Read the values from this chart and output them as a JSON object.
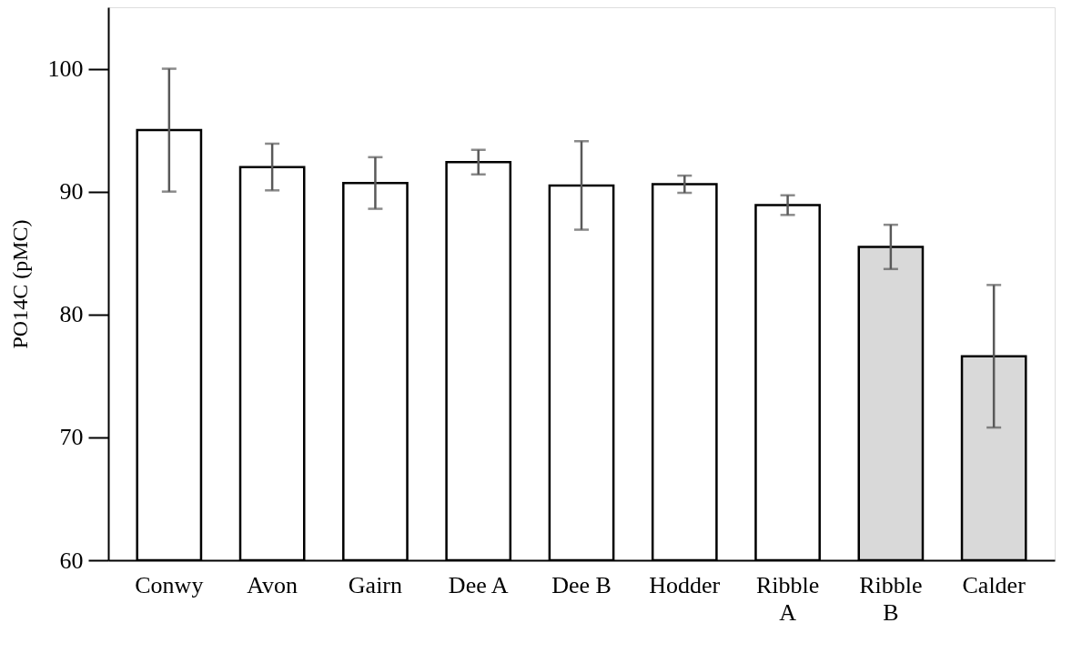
{
  "chart_data": {
    "type": "bar",
    "ylabel": "PO14C  (pMC)",
    "categories": [
      "Conwy",
      "Avon",
      "Gairn",
      "Dee A",
      "Dee B",
      "Hodder",
      "Ribble\nA",
      "Ribble\nB",
      "Calder"
    ],
    "values": [
      95.0,
      92.0,
      90.7,
      92.4,
      90.5,
      90.6,
      88.9,
      85.5,
      76.6
    ],
    "errors": [
      5.0,
      1.9,
      2.1,
      1.0,
      3.6,
      0.7,
      0.8,
      1.8,
      5.8
    ],
    "colors": [
      "#ffffff",
      "#ffffff",
      "#ffffff",
      "#ffffff",
      "#ffffff",
      "#ffffff",
      "#ffffff",
      "#d9d9d9",
      "#d9d9d9"
    ],
    "ylim": [
      60,
      105
    ],
    "yticks": [
      60,
      70,
      80,
      90,
      100
    ],
    "grid": false
  }
}
